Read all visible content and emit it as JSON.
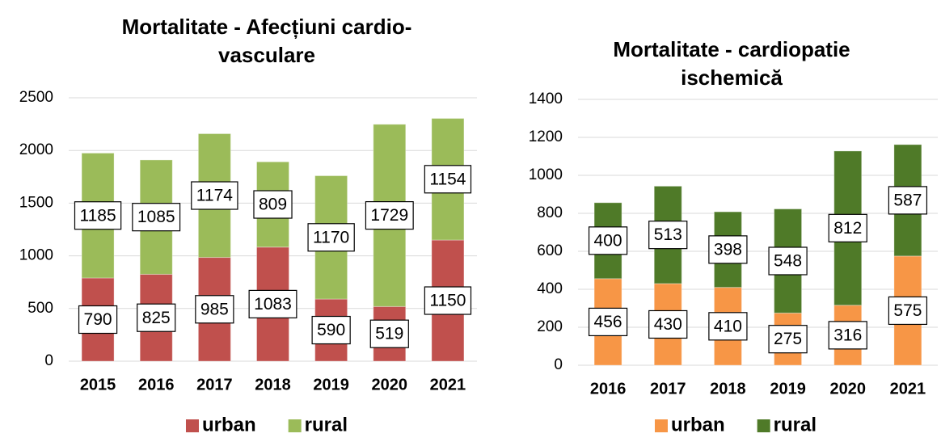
{
  "chart_data": [
    {
      "type": "bar",
      "stacked": true,
      "title": "Mortalitate - Afecțiuni cardio-vasculare",
      "categories": [
        "2015",
        "2016",
        "2017",
        "2018",
        "2019",
        "2020",
        "2021"
      ],
      "series": [
        {
          "name": "urban",
          "color": "#c0504d",
          "values": [
            790,
            825,
            985,
            1083,
            590,
            519,
            1150
          ]
        },
        {
          "name": "rural",
          "color": "#9bbb59",
          "values": [
            1185,
            1085,
            1174,
            809,
            1170,
            1729,
            1154
          ]
        }
      ],
      "ylim": [
        0,
        2500
      ],
      "yticks": [
        0,
        500,
        1000,
        1500,
        2000,
        2500
      ],
      "grid": true,
      "legend": "bottom"
    },
    {
      "type": "bar",
      "stacked": true,
      "title": "Mortalitate - cardiopatie ischemică",
      "categories": [
        "2016",
        "2017",
        "2018",
        "2019",
        "2020",
        "2021"
      ],
      "series": [
        {
          "name": "urban",
          "color": "#f79646",
          "values": [
            456,
            430,
            410,
            275,
            316,
            575
          ]
        },
        {
          "name": "rural",
          "color": "#4f7a28",
          "values": [
            400,
            513,
            398,
            548,
            812,
            587
          ]
        }
      ],
      "ylim": [
        0,
        1400
      ],
      "yticks": [
        0,
        200,
        400,
        600,
        800,
        1000,
        1200,
        1400
      ],
      "grid": true,
      "legend": "bottom"
    }
  ]
}
